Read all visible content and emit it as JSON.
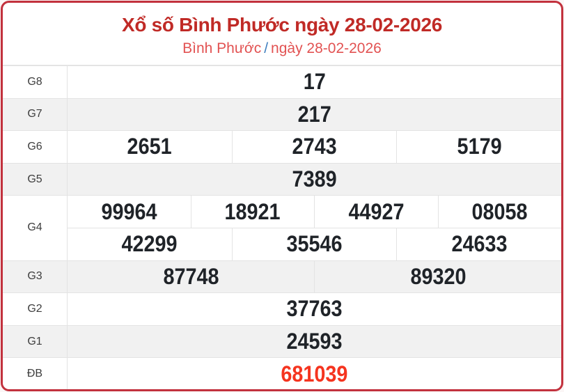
{
  "header": {
    "title": "Xổ số Bình Phước ngày 28-02-2026",
    "subtitle_province": "Bình Phước",
    "subtitle_separator": "/",
    "subtitle_date": "ngày 28-02-2026"
  },
  "colors": {
    "card_border": "#c2313d",
    "title_text": "#c02a26",
    "subtitle_text": "#e25252",
    "separator_text": "#3f7fbf",
    "number_text": "#1f2328",
    "special_number_text": "#f5341f",
    "alt_row_background": "#f1f1f1",
    "cell_border": "#e3e3e3"
  },
  "table": {
    "rows": [
      {
        "label": "G8",
        "cells": [
          "17"
        ]
      },
      {
        "label": "G7",
        "cells": [
          "217"
        ]
      },
      {
        "label": "G6",
        "cells": [
          "2651",
          "2743",
          "5179"
        ]
      },
      {
        "label": "G5",
        "cells": [
          "7389"
        ]
      },
      {
        "label": "G4",
        "cells_a": [
          "99964",
          "18921",
          "44927",
          "08058"
        ],
        "cells_b": [
          "42299",
          "35546",
          "24633"
        ]
      },
      {
        "label": "G3",
        "cells": [
          "87748",
          "89320"
        ]
      },
      {
        "label": "G2",
        "cells": [
          "37763"
        ]
      },
      {
        "label": "G1",
        "cells": [
          "24593"
        ]
      },
      {
        "label": "ĐB",
        "cells": [
          "681039"
        ]
      }
    ]
  }
}
